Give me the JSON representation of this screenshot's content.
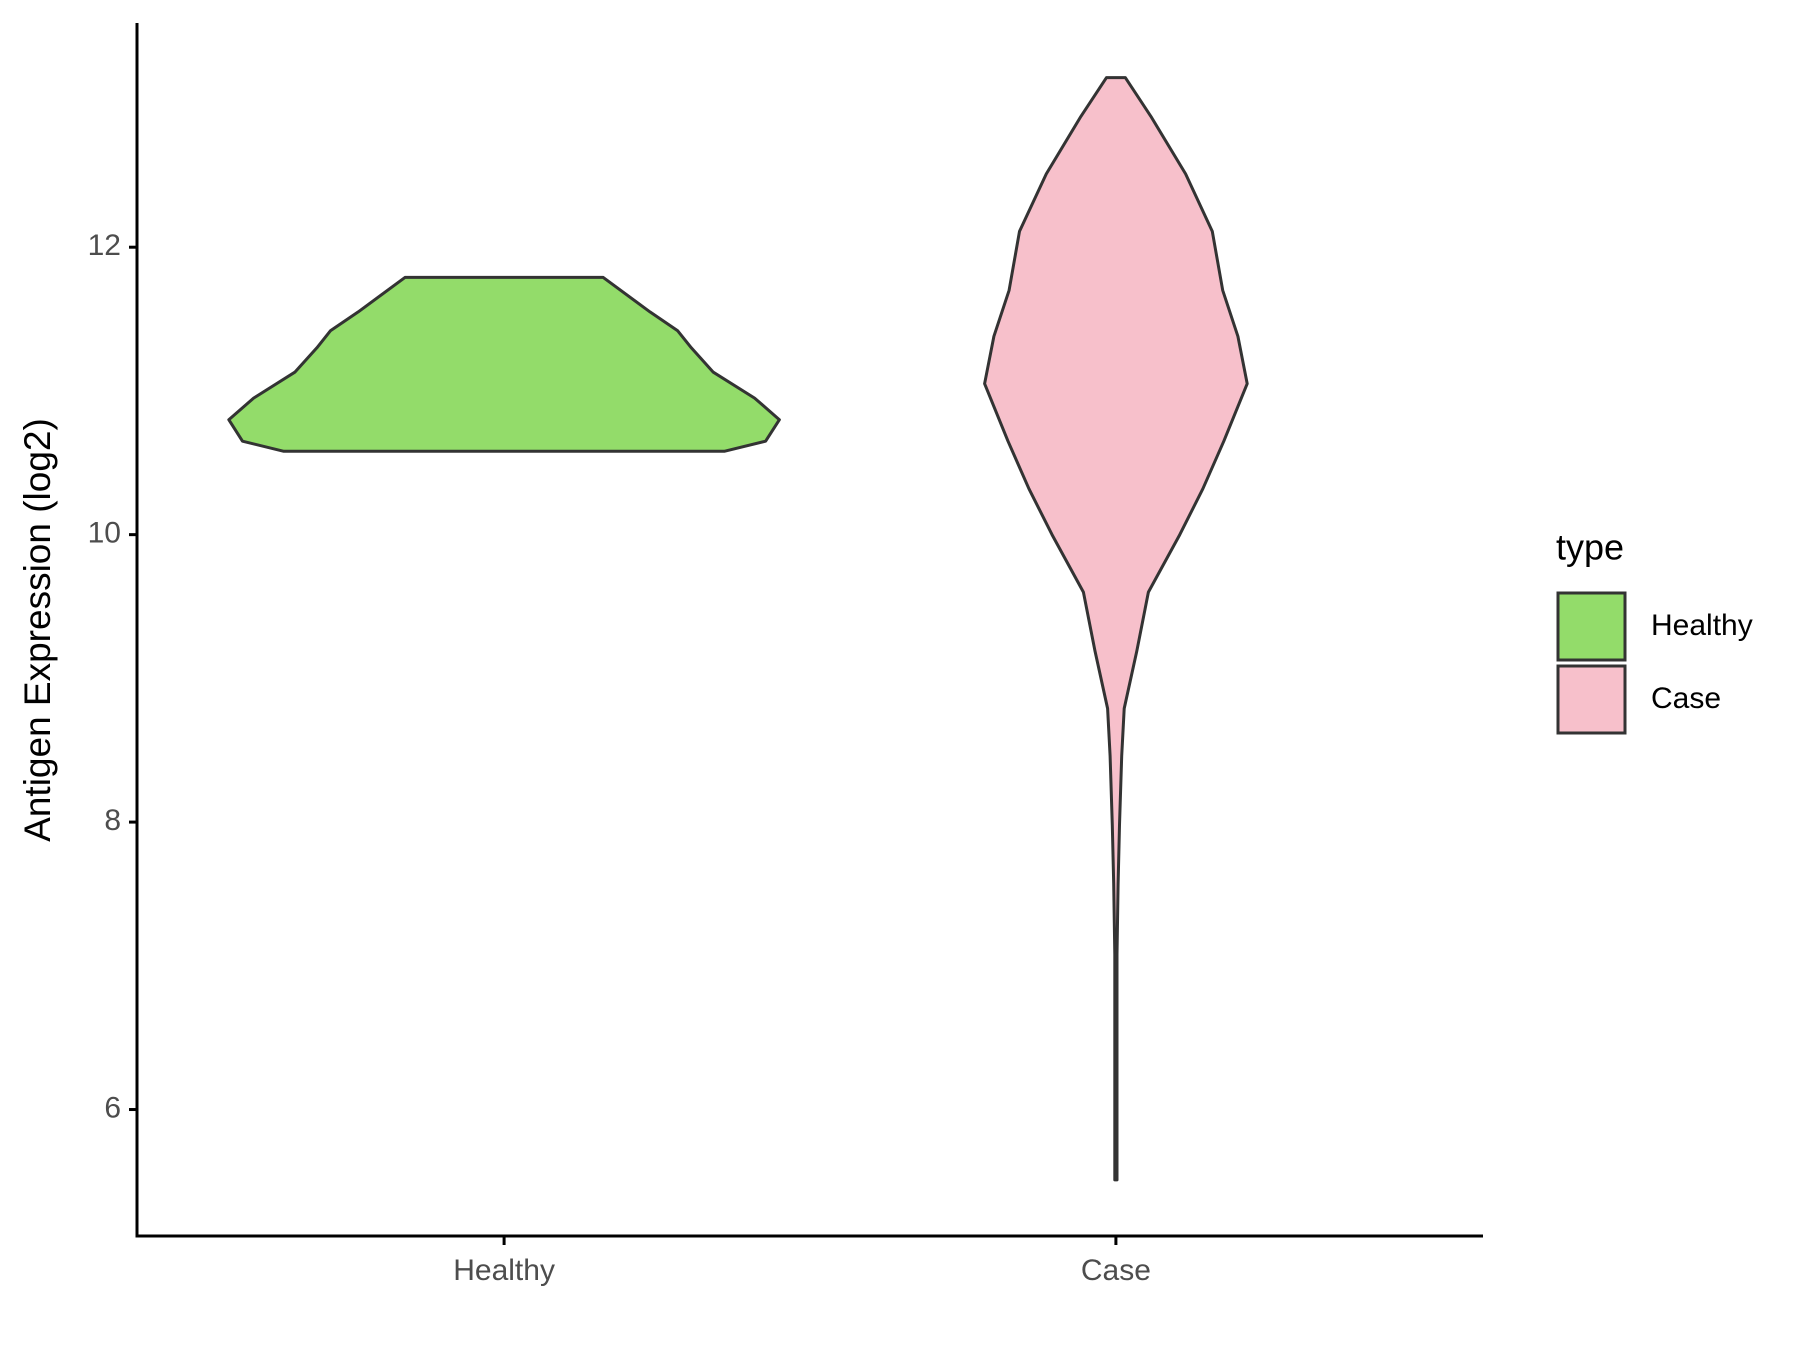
{
  "chart_data": {
    "type": "violin",
    "y_label": "Antigen Expression (log2)",
    "categories": [
      "Healthy",
      "Case"
    ],
    "legend_title": "type",
    "legend_position": "right",
    "grid": false,
    "ylim": [
      5.12,
      13.56
    ],
    "yticks": [
      6,
      8,
      10,
      12
    ],
    "series": [
      {
        "name": "Healthy",
        "color": "#93dc6a",
        "y": [
          10.58,
          10.65,
          10.8,
          10.95,
          11.13,
          11.3,
          11.42,
          11.55,
          11.79
        ],
        "density": [
          0.8,
          0.95,
          1.0,
          0.91,
          0.76,
          0.68,
          0.63,
          0.53,
          0.36
        ]
      },
      {
        "name": "Case",
        "color": "#f7c0cb",
        "y": [
          5.51,
          6.03,
          7.08,
          7.57,
          7.98,
          8.46,
          8.79,
          9.19,
          9.6,
          10.0,
          10.32,
          10.65,
          11.05,
          11.38,
          11.7,
          12.11,
          12.51,
          12.91,
          13.18
        ],
        "density": [
          0.004,
          0.004,
          0.004,
          0.008,
          0.013,
          0.021,
          0.03,
          0.076,
          0.118,
          0.232,
          0.316,
          0.392,
          0.477,
          0.443,
          0.388,
          0.35,
          0.253,
          0.127,
          0.034
        ]
      }
    ]
  }
}
